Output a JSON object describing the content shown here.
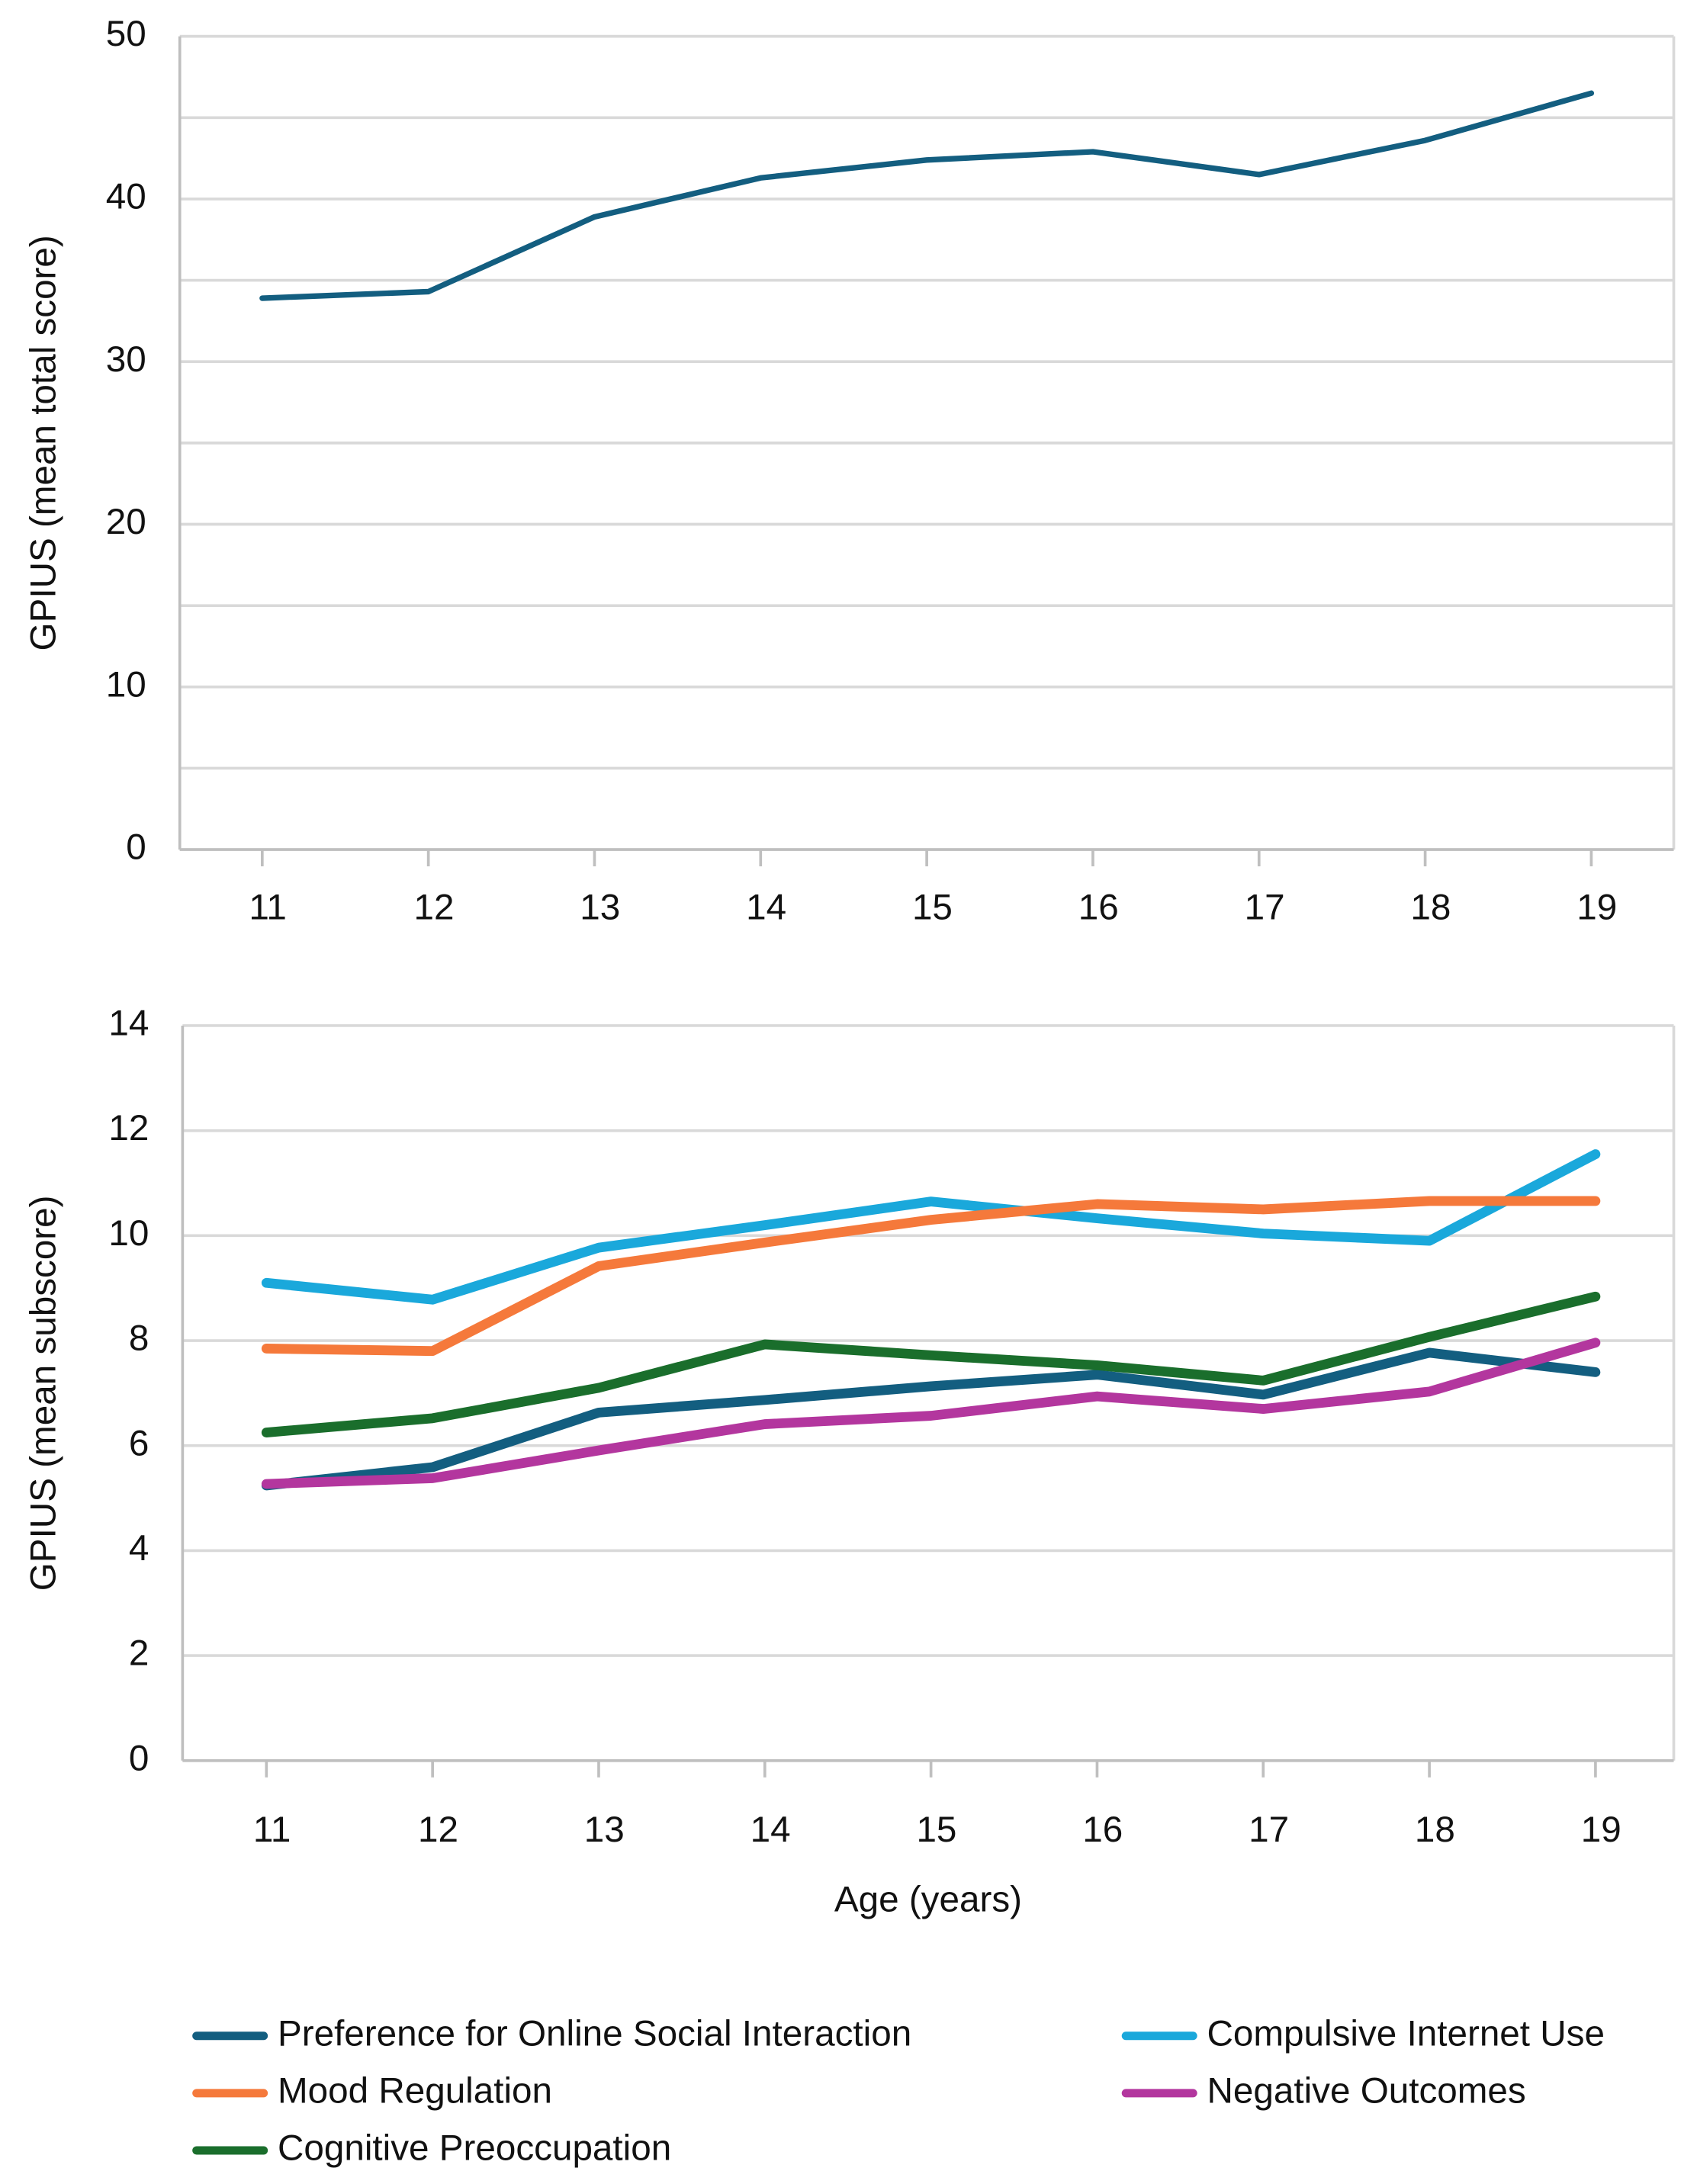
{
  "chart_data": [
    {
      "type": "line",
      "y_label": "GPIUS (mean total score)",
      "categories": [
        "11",
        "12",
        "13",
        "14",
        "15",
        "16",
        "17",
        "18",
        "19"
      ],
      "series": [
        {
          "name": null,
          "color": "#135e80",
          "values": [
            33.9,
            34.3,
            38.9,
            41.3,
            42.4,
            42.9,
            41.5,
            43.6,
            46.5
          ]
        }
      ],
      "ylim": [
        0,
        50
      ],
      "yticks": [
        0,
        10,
        20,
        30,
        40,
        50
      ],
      "minor_yticks": [
        5,
        15,
        25,
        35,
        45
      ],
      "grid": true
    },
    {
      "type": "line",
      "x_label": "Age (years)",
      "y_label": "GPIUS (mean subscore)",
      "categories": [
        "11",
        "12",
        "13",
        "14",
        "15",
        "16",
        "17",
        "18",
        "19"
      ],
      "series": [
        {
          "name": "Preference for Online Social Interaction",
          "color": "#135e80",
          "values": [
            5.24,
            5.59,
            6.63,
            6.87,
            7.13,
            7.35,
            6.97,
            7.77,
            7.4
          ]
        },
        {
          "name": "Compulsive Internet Use",
          "color": "#1aa8db",
          "values": [
            9.1,
            8.78,
            9.77,
            10.2,
            10.65,
            10.33,
            10.04,
            9.9,
            11.55
          ]
        },
        {
          "name": "Mood Regulation",
          "color": "#f5793b",
          "values": [
            7.85,
            7.8,
            9.42,
            9.87,
            10.3,
            10.6,
            10.5,
            10.66,
            10.66
          ]
        },
        {
          "name": "Negative Outcomes",
          "color": "#b3369e",
          "values": [
            5.27,
            5.38,
            5.91,
            6.41,
            6.57,
            6.94,
            6.7,
            7.03,
            7.96
          ]
        },
        {
          "name": "Cognitive Preoccupation",
          "color": "#1a6e2c",
          "values": [
            6.25,
            6.52,
            7.1,
            7.93,
            7.72,
            7.53,
            7.24,
            8.07,
            8.84
          ]
        }
      ],
      "ylim": [
        0,
        14
      ],
      "yticks": [
        0,
        2,
        4,
        6,
        8,
        10,
        12,
        14
      ],
      "grid": true
    }
  ]
}
